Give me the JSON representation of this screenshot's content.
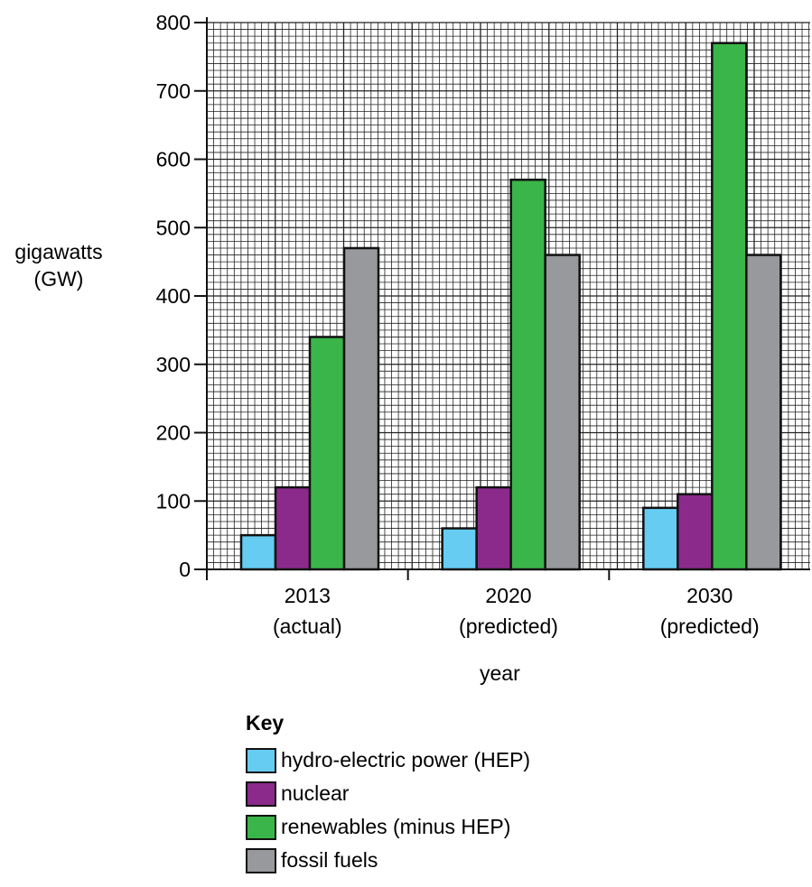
{
  "chart_data": {
    "type": "bar",
    "ylabel_line1": "gigawatts",
    "ylabel_line2": "(GW)",
    "xlabel": "year",
    "categories": [
      {
        "line1": "2013",
        "line2": "(actual)"
      },
      {
        "line1": "2020",
        "line2": "(predicted)"
      },
      {
        "line1": "2030",
        "line2": "(predicted)"
      }
    ],
    "series": [
      {
        "name": "hydro-electric power (HEP)",
        "color": "#66ccf2",
        "values": [
          50,
          60,
          90
        ]
      },
      {
        "name": "nuclear",
        "color": "#8b2a8b",
        "values": [
          120,
          120,
          110
        ]
      },
      {
        "name": "renewables (minus HEP)",
        "color": "#3ab54a",
        "values": [
          340,
          570,
          770
        ]
      },
      {
        "name": "fossil fuels",
        "color": "#97999c",
        "values": [
          470,
          460,
          460
        ]
      }
    ],
    "ylim": [
      0,
      800
    ],
    "yticks": [
      0,
      100,
      200,
      300,
      400,
      500,
      600,
      700,
      800
    ],
    "grid": true,
    "legend_title": "Key",
    "legend_position": "bottom"
  }
}
